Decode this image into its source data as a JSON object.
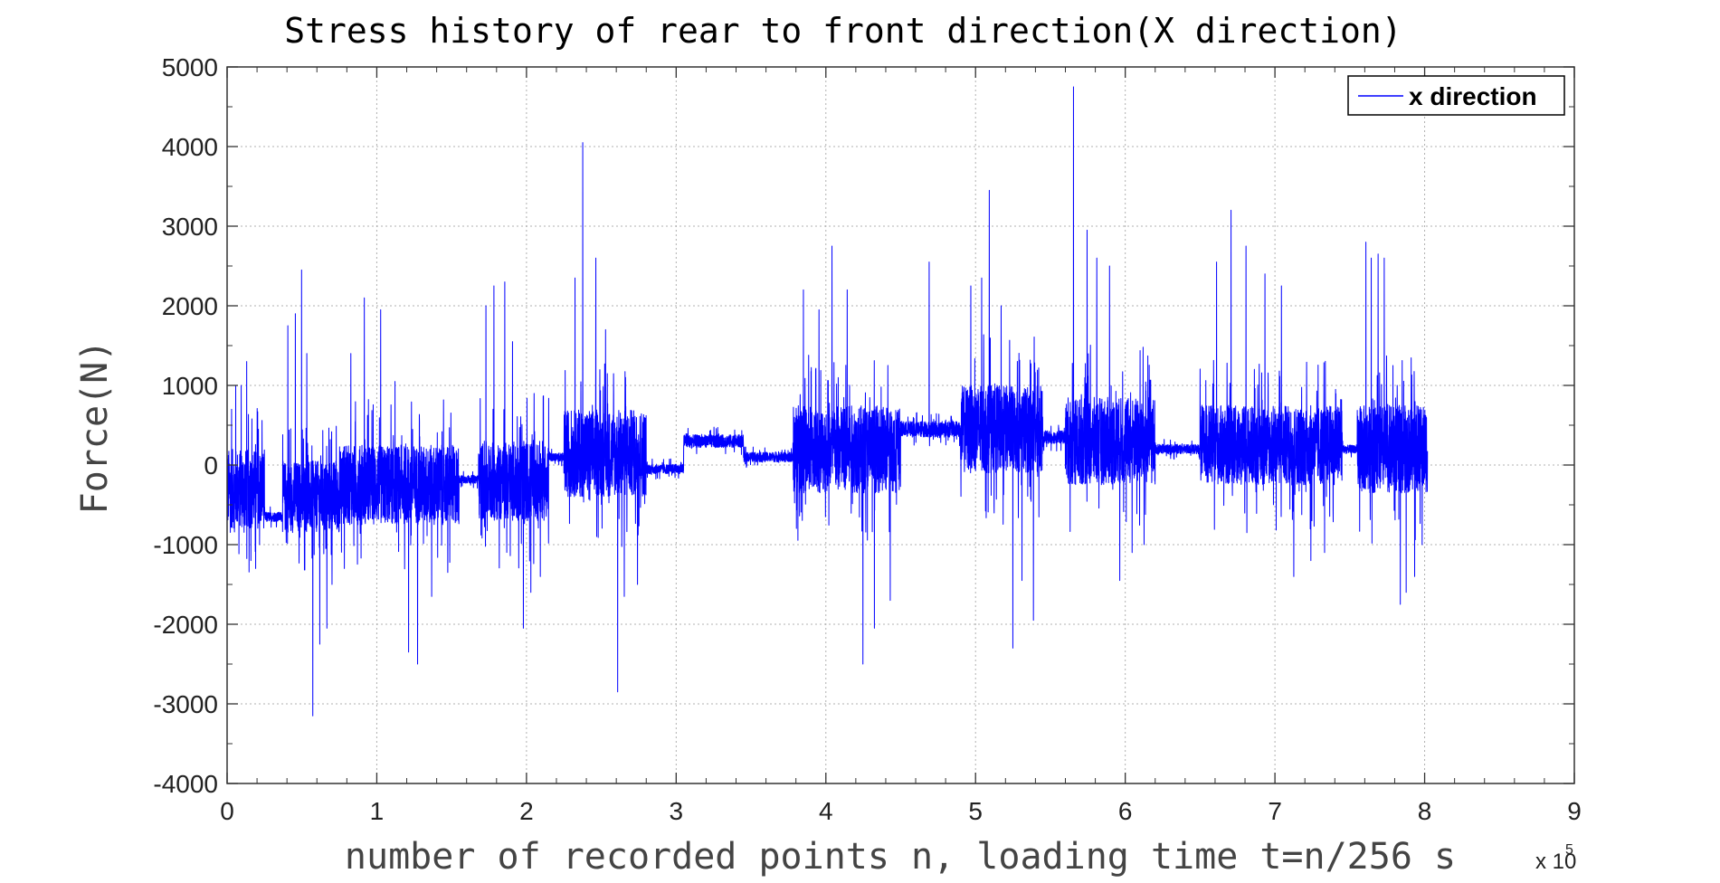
{
  "chart_data": {
    "type": "line",
    "title": "Stress history of rear to front direction(X direction)",
    "xlabel": "number of recorded points n, loading time t=n/256 s",
    "ylabel": "Force(N)",
    "x_multiplier": "x 10",
    "x_multiplier_exp": "5",
    "xlim": [
      0,
      9
    ],
    "ylim": [
      -4000,
      5000
    ],
    "x_ticks": [
      "0",
      "1",
      "2",
      "3",
      "4",
      "5",
      "6",
      "7",
      "8",
      "9"
    ],
    "y_ticks": [
      "5000",
      "4000",
      "3000",
      "2000",
      "1000",
      "0",
      "-1000",
      "-2000",
      "-3000",
      "-4000"
    ],
    "grid": true,
    "legend_position": "top-right",
    "series": [
      {
        "name": "x direction",
        "color": "#0000ff",
        "data_x_range": [
          0,
          8.02
        ],
        "segments": [
          {
            "x": [
              0.0,
              0.25
            ],
            "level": -300,
            "spread": 500,
            "peaks_up": [
              700,
              1000,
              1000,
              1300
            ],
            "peaks_down": [
              -1200,
              -1300,
              -1000
            ]
          },
          {
            "x": [
              0.25,
              0.37
            ],
            "level": -650,
            "spread": 60,
            "peaks_up": [],
            "peaks_down": []
          },
          {
            "x": [
              0.37,
              0.75
            ],
            "level": -400,
            "spread": 450,
            "peaks_up": [
              1750,
              1900,
              2450,
              1400
            ],
            "peaks_down": [
              -3150,
              -2250,
              -2050,
              -1500
            ]
          },
          {
            "x": [
              0.75,
              1.55
            ],
            "level": -250,
            "spread": 500,
            "peaks_up": [
              1400,
              2100,
              1950,
              1050
            ],
            "peaks_down": [
              -2350,
              -2500,
              -1650,
              -1350
            ]
          },
          {
            "x": [
              1.55,
              1.68
            ],
            "level": -180,
            "spread": 50,
            "peaks_up": [],
            "peaks_down": []
          },
          {
            "x": [
              1.68,
              2.15
            ],
            "level": -200,
            "spread": 500,
            "peaks_up": [
              2000,
              2250,
              2300,
              1550
            ],
            "peaks_down": [
              -2050,
              -1600,
              -1400
            ]
          },
          {
            "x": [
              2.15,
              2.25
            ],
            "level": 100,
            "spread": 50,
            "peaks_up": [],
            "peaks_down": []
          },
          {
            "x": [
              2.25,
              2.8
            ],
            "level": 150,
            "spread": 550,
            "peaks_up": [
              2350,
              4050,
              2600,
              1700
            ],
            "peaks_down": [
              -2850,
              -1650,
              -1500
            ]
          },
          {
            "x": [
              2.8,
              3.05
            ],
            "level": -50,
            "spread": 60,
            "peaks_up": [],
            "peaks_down": []
          },
          {
            "x": [
              3.05,
              3.45
            ],
            "level": 300,
            "spread": 80,
            "peaks_up": [],
            "peaks_down": []
          },
          {
            "x": [
              3.45,
              3.78
            ],
            "level": 100,
            "spread": 60,
            "peaks_up": [],
            "peaks_down": []
          },
          {
            "x": [
              3.78,
              4.5
            ],
            "level": 200,
            "spread": 550,
            "peaks_up": [
              2200,
              1950,
              2750,
              2200
            ],
            "peaks_down": [
              -2500,
              -2050,
              -1700
            ]
          },
          {
            "x": [
              4.5,
              4.9
            ],
            "level": 450,
            "spread": 100,
            "peaks_up": [
              2550
            ],
            "peaks_down": []
          },
          {
            "x": [
              4.9,
              5.45
            ],
            "level": 450,
            "spread": 550,
            "peaks_up": [
              2250,
              2350,
              3450,
              2000
            ],
            "peaks_down": [
              -2300,
              -1450,
              -1950
            ]
          },
          {
            "x": [
              5.45,
              5.6
            ],
            "level": 350,
            "spread": 80,
            "peaks_up": [],
            "peaks_down": []
          },
          {
            "x": [
              5.6,
              6.2
            ],
            "level": 300,
            "spread": 550,
            "peaks_up": [
              4750,
              2950,
              2600,
              2500
            ],
            "peaks_down": [
              -1450,
              -1100,
              -1000
            ]
          },
          {
            "x": [
              6.2,
              6.5
            ],
            "level": 200,
            "spread": 60,
            "peaks_up": [],
            "peaks_down": []
          },
          {
            "x": [
              6.5,
              7.45
            ],
            "level": 250,
            "spread": 500,
            "peaks_up": [
              2550,
              3200,
              2750,
              2400,
              2250
            ],
            "peaks_down": [
              -1400,
              -1200,
              -1100
            ]
          },
          {
            "x": [
              7.45,
              7.55
            ],
            "level": 200,
            "spread": 50,
            "peaks_up": [],
            "peaks_down": []
          },
          {
            "x": [
              7.55,
              8.02
            ],
            "level": 200,
            "spread": 550,
            "peaks_up": [
              2800,
              2600,
              2650,
              2600,
              1250
            ],
            "peaks_down": [
              -1750,
              -1600,
              -1400,
              -1000
            ]
          }
        ]
      }
    ]
  }
}
